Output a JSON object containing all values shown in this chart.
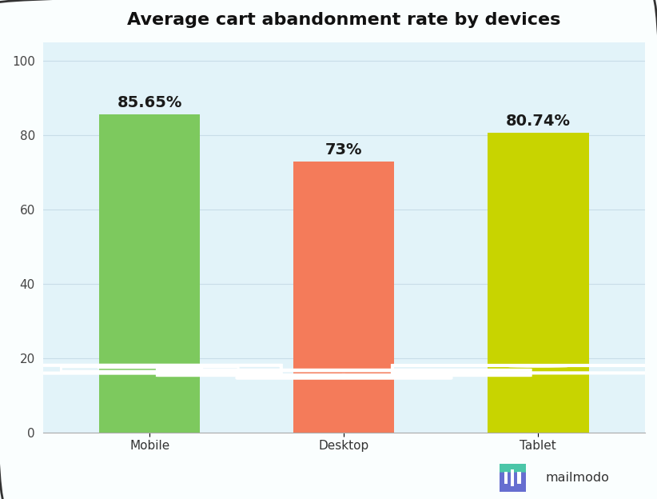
{
  "title": "Average cart abandonment rate by devices",
  "categories": [
    "Mobile",
    "Desktop",
    "Tablet"
  ],
  "values": [
    85.65,
    73.0,
    80.74
  ],
  "labels": [
    "85.65%",
    "73%",
    "80.74%"
  ],
  "bar_colors": [
    "#7DC95E",
    "#F47B5A",
    "#C8D400"
  ],
  "background_color": "#E2F3F9",
  "outer_background": "#FAFEFE",
  "ylim": [
    0,
    100
  ],
  "yticks": [
    0,
    20,
    40,
    60,
    80,
    100
  ],
  "bar_width": 0.52,
  "title_fontsize": 16,
  "label_fontsize": 14,
  "tick_fontsize": 11,
  "watermark_text": "mailmodo",
  "grid_color": "#C8DDE8",
  "axis_color": "#AAAAAA",
  "icon_color": "white",
  "icon_lw": 3.0
}
